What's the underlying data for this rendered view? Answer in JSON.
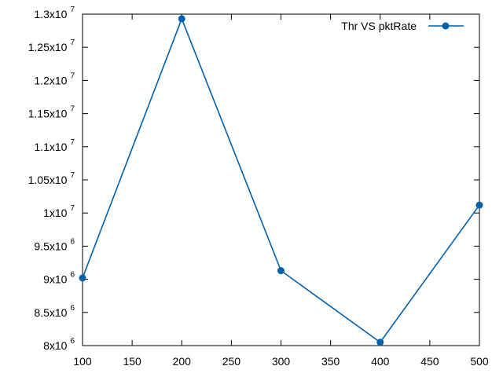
{
  "chart_data": {
    "type": "line",
    "title": "",
    "xlabel": "",
    "ylabel": "",
    "x": [
      100,
      200,
      300,
      400,
      500
    ],
    "series": [
      {
        "name": "Thr VS pktRate",
        "values": [
          9020000,
          12930000,
          9130000,
          8050000,
          10120000
        ],
        "color": "#0060ad",
        "marker": "circle"
      }
    ],
    "xlim": [
      100,
      500
    ],
    "ylim": [
      8000000,
      13000000
    ],
    "x_ticks": [
      {
        "value": 100,
        "label": "100"
      },
      {
        "value": 150,
        "label": "150"
      },
      {
        "value": 200,
        "label": "200"
      },
      {
        "value": 250,
        "label": "250"
      },
      {
        "value": 300,
        "label": "300"
      },
      {
        "value": 350,
        "label": "350"
      },
      {
        "value": 400,
        "label": "400"
      },
      {
        "value": 450,
        "label": "450"
      },
      {
        "value": 500,
        "label": "500"
      }
    ],
    "y_ticks": [
      {
        "value": 8000000,
        "mantissa": "8x10",
        "exponent": "6"
      },
      {
        "value": 8500000,
        "mantissa": "8.5x10",
        "exponent": "6"
      },
      {
        "value": 9000000,
        "mantissa": "9x10",
        "exponent": "6"
      },
      {
        "value": 9500000,
        "mantissa": "9.5x10",
        "exponent": "6"
      },
      {
        "value": 10000000,
        "mantissa": "1x10",
        "exponent": "7"
      },
      {
        "value": 10500000,
        "mantissa": "1.05x10",
        "exponent": "7"
      },
      {
        "value": 11000000,
        "mantissa": "1.1x10",
        "exponent": "7"
      },
      {
        "value": 11500000,
        "mantissa": "1.15x10",
        "exponent": "7"
      },
      {
        "value": 12000000,
        "mantissa": "1.2x10",
        "exponent": "7"
      },
      {
        "value": 12500000,
        "mantissa": "1.25x10",
        "exponent": "7"
      },
      {
        "value": 13000000,
        "mantissa": "1.3x10",
        "exponent": "7"
      }
    ],
    "grid": false,
    "legend_position": "top-right"
  }
}
